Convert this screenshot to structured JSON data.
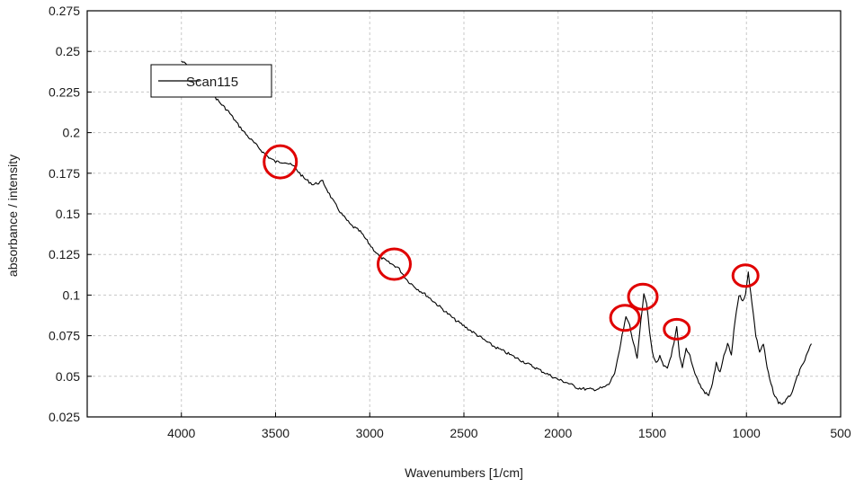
{
  "chart_data": {
    "type": "line",
    "title": "",
    "xlabel": "Wavenumbers [1/cm]",
    "ylabel": "absorbance / intensity",
    "xlim": [
      4500,
      500
    ],
    "ylim": [
      0.025,
      0.275
    ],
    "x_reversed": true,
    "x_ticks": [
      "4000",
      "3500",
      "3000",
      "2500",
      "2000",
      "1500",
      "1000",
      "500"
    ],
    "y_ticks": [
      "0.025",
      "0.05",
      "0.075",
      "0.1",
      "0.125",
      "0.15",
      "0.175",
      "0.2",
      "0.225",
      "0.25",
      "0.275"
    ],
    "grid": true,
    "legend_position": "top-left",
    "series": [
      {
        "name": "Scan115",
        "color": "#000000",
        "x": [
          4000,
          3950,
          3900,
          3850,
          3800,
          3750,
          3700,
          3650,
          3600,
          3550,
          3500,
          3450,
          3400,
          3350,
          3300,
          3250,
          3200,
          3150,
          3100,
          3050,
          3000,
          2950,
          2900,
          2850,
          2800,
          2750,
          2700,
          2650,
          2600,
          2550,
          2500,
          2450,
          2400,
          2350,
          2300,
          2250,
          2200,
          2150,
          2100,
          2050,
          2000,
          1950,
          1900,
          1850,
          1800,
          1760,
          1730,
          1700,
          1680,
          1660,
          1640,
          1620,
          1600,
          1580,
          1560,
          1545,
          1530,
          1515,
          1500,
          1480,
          1460,
          1440,
          1420,
          1400,
          1385,
          1370,
          1355,
          1340,
          1320,
          1300,
          1280,
          1260,
          1240,
          1220,
          1200,
          1180,
          1160,
          1140,
          1120,
          1100,
          1080,
          1060,
          1040,
          1020,
          1005,
          990,
          970,
          950,
          930,
          910,
          890,
          870,
          850,
          830,
          810,
          790,
          770,
          750,
          730,
          710,
          690,
          670,
          655
        ],
        "values": [
          0.244,
          0.24,
          0.233,
          0.226,
          0.219,
          0.213,
          0.205,
          0.198,
          0.192,
          0.186,
          0.182,
          0.182,
          0.179,
          0.172,
          0.168,
          0.17,
          0.159,
          0.15,
          0.143,
          0.139,
          0.131,
          0.124,
          0.12,
          0.117,
          0.109,
          0.104,
          0.1,
          0.095,
          0.09,
          0.085,
          0.081,
          0.077,
          0.073,
          0.069,
          0.066,
          0.063,
          0.06,
          0.057,
          0.054,
          0.051,
          0.048,
          0.046,
          0.043,
          0.042,
          0.042,
          0.043,
          0.045,
          0.052,
          0.062,
          0.075,
          0.086,
          0.082,
          0.07,
          0.062,
          0.085,
          0.1,
          0.095,
          0.078,
          0.065,
          0.058,
          0.062,
          0.056,
          0.055,
          0.063,
          0.07,
          0.08,
          0.062,
          0.055,
          0.067,
          0.063,
          0.054,
          0.048,
          0.043,
          0.04,
          0.038,
          0.046,
          0.058,
          0.052,
          0.062,
          0.07,
          0.063,
          0.085,
          0.1,
          0.097,
          0.1,
          0.114,
          0.095,
          0.075,
          0.065,
          0.07,
          0.055,
          0.045,
          0.038,
          0.034,
          0.033,
          0.035,
          0.038,
          0.042,
          0.05,
          0.055,
          0.06,
          0.066,
          0.07
        ]
      }
    ],
    "annotations": [
      {
        "type": "circle",
        "color": "#e00000",
        "x": 3475,
        "y": 0.182
      },
      {
        "type": "circle",
        "color": "#e00000",
        "x": 2870,
        "y": 0.119
      },
      {
        "type": "circle",
        "color": "#e00000",
        "x": 1645,
        "y": 0.086
      },
      {
        "type": "circle",
        "color": "#e00000",
        "x": 1550,
        "y": 0.099
      },
      {
        "type": "circle",
        "color": "#e00000",
        "x": 1370,
        "y": 0.079
      },
      {
        "type": "circle",
        "color": "#e00000",
        "x": 1005,
        "y": 0.112
      }
    ]
  }
}
